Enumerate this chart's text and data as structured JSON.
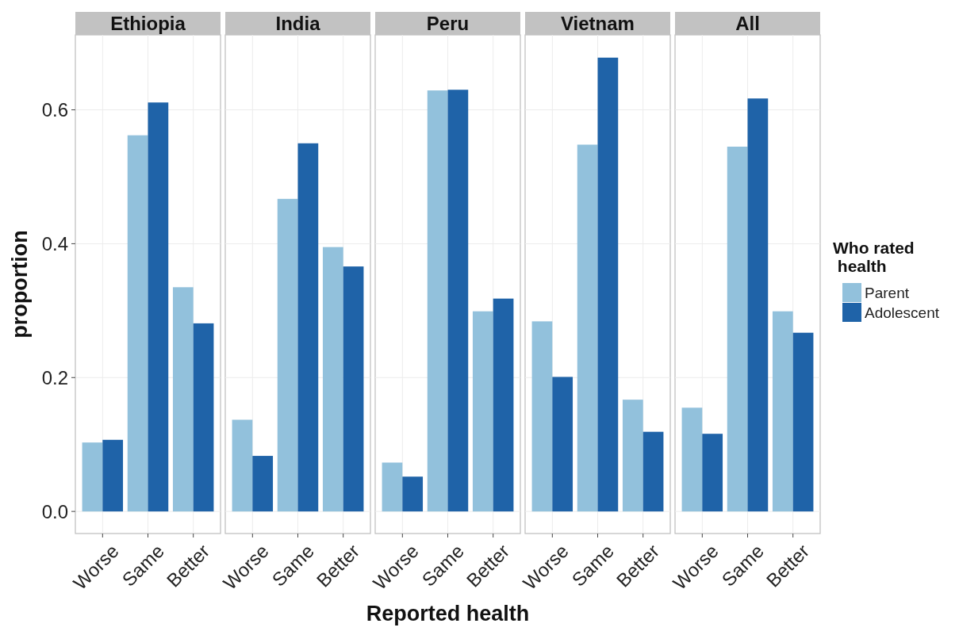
{
  "chart_data": [
    {
      "type": "bar",
      "title": "Ethiopia",
      "ylabel": "proportion",
      "categories": [
        "Worse",
        "Same",
        "Better"
      ],
      "ylim": [
        -0.033,
        0.712
      ],
      "yticks": [
        {
          "value": 0,
          "label": "0.0"
        },
        0.2,
        0.4,
        0.6
      ],
      "grid": true,
      "series": [
        {
          "color": "#92c1dc",
          "values": [
            0.103,
            0.562,
            0.335
          ]
        },
        {
          "color": "#1f63a8",
          "values": [
            0.107,
            0.611,
            0.281
          ]
        }
      ]
    },
    {
      "type": "bar",
      "title": "India",
      "categories": [
        "Worse",
        "Same",
        "Better"
      ],
      "ylim": [
        -0.033,
        0.712
      ],
      "yticks": [
        0,
        0.2,
        0.4,
        0.6
      ],
      "grid": true,
      "tick_labels": "x",
      "series": [
        {
          "color": "#92c1dc",
          "values": [
            0.137,
            0.467,
            0.395
          ]
        },
        {
          "color": "#1f63a8",
          "values": [
            0.083,
            0.55,
            0.366
          ]
        }
      ]
    },
    {
      "type": "bar",
      "title": "Peru",
      "xlabel": "Reported health",
      "categories": [
        "Worse",
        "Same",
        "Better"
      ],
      "ylim": [
        -0.033,
        0.712
      ],
      "yticks": [
        0,
        0.2,
        0.4,
        0.6
      ],
      "grid": true,
      "tick_labels": "x",
      "series": [
        {
          "color": "#92c1dc",
          "values": [
            0.073,
            0.629,
            0.299
          ]
        },
        {
          "color": "#1f63a8",
          "values": [
            0.052,
            0.63,
            0.318
          ]
        }
      ]
    },
    {
      "type": "bar",
      "title": "Vietnam",
      "categories": [
        "Worse",
        "Same",
        "Better"
      ],
      "ylim": [
        -0.033,
        0.712
      ],
      "yticks": [
        0,
        0.2,
        0.4,
        0.6
      ],
      "grid": true,
      "tick_labels": "x",
      "series": [
        {
          "color": "#92c1dc",
          "values": [
            0.284,
            0.548,
            0.167
          ]
        },
        {
          "color": "#1f63a8",
          "values": [
            0.201,
            0.678,
            0.119
          ]
        }
      ]
    },
    {
      "type": "bar",
      "title": "All",
      "categories": [
        "Worse",
        "Same",
        "Better"
      ],
      "ylim": [
        -0.033,
        0.712
      ],
      "yticks": [
        0,
        0.2,
        0.4,
        0.6
      ],
      "grid": true,
      "tick_labels": "x",
      "legend": "right",
      "legend_title": "Who rated\n health",
      "series": [
        {
          "name": "Parent",
          "color": "#92c1dc",
          "values": [
            0.155,
            0.545,
            0.299
          ]
        },
        {
          "name": "Adolescent",
          "color": "#1f63a8",
          "values": [
            0.116,
            0.617,
            0.267
          ]
        }
      ]
    }
  ]
}
